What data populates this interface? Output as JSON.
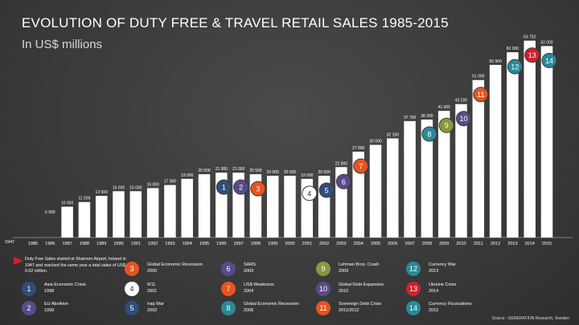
{
  "title": "EVOLUTION OF DUTY FREE & TRAVEL RETAIL SALES 1985-2015",
  "subtitle": "In US$ millions",
  "colors": {
    "background": "#3b3b3b",
    "bar": "#ffffff",
    "red": "#d0202e",
    "orange": "#e8541e",
    "teal": "#2a8a98",
    "purple": "#5b4a8a",
    "gray": "#8a8a8a",
    "olive": "#8d9540",
    "navy": "#2f4e7a",
    "white": "#ffffff"
  },
  "chart_data": {
    "type": "bar",
    "title": "EVOLUTION OF DUTY FREE & TRAVEL RETAIL SALES 1985-2015",
    "subtitle": "In US$ millions",
    "baseline": {
      "category": "1947",
      "label": "1947"
    },
    "categories": [
      "1985",
      "1986",
      "1987",
      "1988",
      "1989",
      "1990",
      "1991",
      "1992",
      "1993",
      "1994",
      "1995",
      "1996",
      "1997",
      "1998",
      "1999",
      "2000",
      "2001",
      "2002",
      "2003",
      "2004",
      "2005",
      "2006",
      "2007",
      "2008",
      "2009",
      "2010",
      "2011",
      "2012",
      "2013",
      "2014",
      "2015"
    ],
    "values": [
      null,
      null,
      10000,
      11500,
      13500,
      15000,
      15000,
      16000,
      17000,
      19000,
      20500,
      21000,
      21000,
      20500,
      20000,
      20000,
      19000,
      20000,
      22800,
      27800,
      30000,
      32100,
      37700,
      38200,
      41000,
      43200,
      51000,
      55900,
      60000,
      63752,
      62000
    ],
    "value_labels": [
      "",
      "",
      "10 000",
      "11 500",
      "13 500",
      "15 000",
      "15 000",
      "16 000",
      "17 000",
      "19 000",
      "20 500",
      "21 000",
      "21 000",
      "20 500",
      "20 000",
      "20 000",
      "19 000",
      "20 000",
      "22 800",
      "27 800",
      "30 000",
      "32 100",
      "37 700",
      "38 200",
      "41 000",
      "43 200",
      "51 000",
      "55 900",
      "60 000",
      "63 752",
      "62 000"
    ],
    "extra_labels": [
      {
        "category": "1986",
        "label": "5 000"
      }
    ],
    "annotations": [
      {
        "marker": "1",
        "category": "1996",
        "color": "#2f4e7a"
      },
      {
        "marker": "2",
        "category": "1997",
        "color": "#5b4a8a"
      },
      {
        "marker": "3",
        "category": "1998",
        "color": "#e8541e"
      },
      {
        "marker": "4",
        "category": "2001",
        "color": "#ffffff"
      },
      {
        "marker": "5",
        "category": "2002",
        "color": "#2f4e7a"
      },
      {
        "marker": "6",
        "category": "2003",
        "color": "#5b4a8a"
      },
      {
        "marker": "7",
        "category": "2004",
        "color": "#e8541e"
      },
      {
        "marker": "8",
        "category": "2008",
        "color": "#2a8a98"
      },
      {
        "marker": "9",
        "category": "2009",
        "color": "#8d9540"
      },
      {
        "marker": "10",
        "category": "2010",
        "color": "#5b4a8a"
      },
      {
        "marker": "11",
        "category": "2011",
        "color": "#e8541e"
      },
      {
        "marker": "12",
        "category": "2013",
        "color": "#2a8a98"
      },
      {
        "marker": "13",
        "category": "2014",
        "color": "#d0202e"
      },
      {
        "marker": "14",
        "category": "2015",
        "color": "#2a8a98"
      }
    ],
    "ylim": [
      0,
      66000
    ],
    "xlabel": "",
    "ylabel": ""
  },
  "note": "Duty Free Sales started at Shannon Airport, Ireland in 1947 and reached the same year a total sales of US$ 0.02 million.",
  "legend": [
    {
      "marker": "1",
      "text": "Asia Economic Crisis\n1998",
      "color": "#2f4e7a"
    },
    {
      "marker": "2",
      "text": "EU Abolition\n1999",
      "color": "#5b4a8a"
    },
    {
      "marker": "3",
      "text": "Global Economic Recession\n2000",
      "color": "#e8541e"
    },
    {
      "marker": "4",
      "text": "9/11\n2001",
      "color": "#ffffff"
    },
    {
      "marker": "5",
      "text": "Iraq War\n2002",
      "color": "#2f4e7a"
    },
    {
      "marker": "6",
      "text": "SARS\n2003",
      "color": "#5b4a8a"
    },
    {
      "marker": "7",
      "text": "US$ Weakness\n2004",
      "color": "#e8541e"
    },
    {
      "marker": "8",
      "text": "Global Economic Recession\n2008",
      "color": "#2a8a98"
    },
    {
      "marker": "9",
      "text": "Lehman Bros. Crash\n2009",
      "color": "#8d9540"
    },
    {
      "marker": "10",
      "text": "Global Debt Expansion\n2010",
      "color": "#5b4a8a"
    },
    {
      "marker": "11",
      "text": "Sovereign Debt Crisis\n2011/2012",
      "color": "#e8541e"
    },
    {
      "marker": "12",
      "text": "Currency War\n2013",
      "color": "#2a8a98"
    },
    {
      "marker": "13",
      "text": "Ukraine Crisis\n2014",
      "color": "#d0202e"
    },
    {
      "marker": "14",
      "text": "Currency Fluctuations\n2015",
      "color": "#2a8a98"
    }
  ],
  "source": "Source : GENERATION Research, Sweden"
}
